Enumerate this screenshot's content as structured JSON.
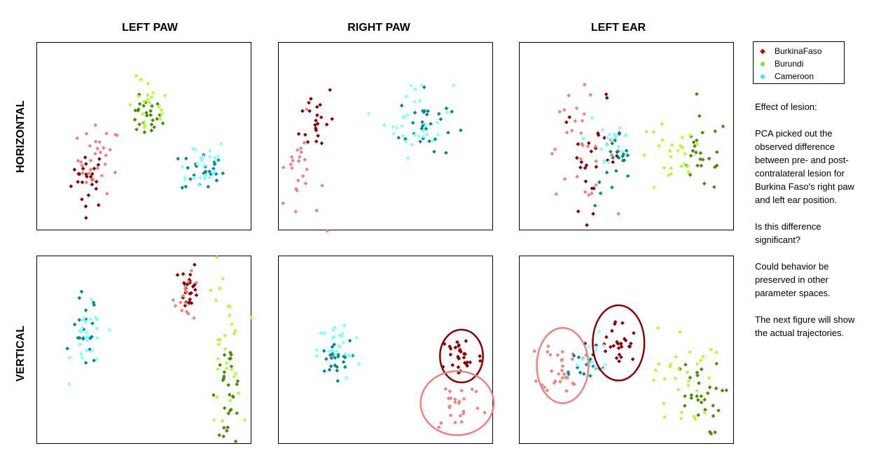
{
  "columns": [
    "LEFT PAW",
    "RIGHT PAW",
    "LEFT EAR"
  ],
  "rows": [
    "HORIZONTAL",
    "VERTICAL"
  ],
  "legend": [
    {
      "name": "BurkinaFaso",
      "color": "#c00000"
    },
    {
      "name": "Burundi",
      "color": "#7fe020"
    },
    {
      "name": "Cameroon",
      "color": "#30e8e8"
    }
  ],
  "notes": [
    "Effect of lesion:",
    "PCA picked out the observed difference between pre- and post-contralateral lesion for Burkina Faso's right paw and left ear position.",
    "Is this difference significant?",
    "Could behavior be preserved in other parameter spaces.",
    "The next figure will show the actual trajectories."
  ],
  "chart_data": {
    "type": "scatter",
    "axis_labels_shown": false,
    "grid": false,
    "legend_position": "top-right",
    "series_colors": {
      "burkina_pre": "#8b0000",
      "burkina_post": "#f08080",
      "burundi_pre": "#4a8a00",
      "burundi_post": "#adff2f",
      "cameroon_pre": "#008b8b",
      "cameroon_post": "#7fffff"
    },
    "panels": [
      {
        "row": "HORIZONTAL",
        "col": "LEFT PAW",
        "xlim": [
          0,
          100
        ],
        "ylim": [
          0,
          100
        ],
        "clusters": [
          {
            "series": "burkina_pre",
            "cx": 24,
            "cy": 28,
            "sx": 4,
            "sy": 8,
            "n": 25
          },
          {
            "series": "burkina_post",
            "cx": 29,
            "cy": 38,
            "sx": 5,
            "sy": 9,
            "n": 30
          },
          {
            "series": "burundi_pre",
            "cx": 50,
            "cy": 60,
            "sx": 4,
            "sy": 5,
            "n": 25
          },
          {
            "series": "burundi_post",
            "cx": 52,
            "cy": 65,
            "sx": 5,
            "sy": 8,
            "n": 20
          },
          {
            "series": "cameroon_pre",
            "cx": 77,
            "cy": 32,
            "sx": 5,
            "sy": 6,
            "n": 25
          },
          {
            "series": "cameroon_post",
            "cx": 75,
            "cy": 36,
            "sx": 7,
            "sy": 7,
            "n": 25
          }
        ]
      },
      {
        "row": "HORIZONTAL",
        "col": "RIGHT PAW",
        "xlim": [
          0,
          100
        ],
        "ylim": [
          0,
          100
        ],
        "clusters": [
          {
            "series": "burkina_pre",
            "cx": 18,
            "cy": 60,
            "sx": 4,
            "sy": 10,
            "n": 22
          },
          {
            "series": "burkina_post",
            "cx": 9,
            "cy": 30,
            "sx": 5,
            "sy": 15,
            "n": 28
          },
          {
            "series": "cameroon_pre",
            "cx": 68,
            "cy": 56,
            "sx": 6,
            "sy": 9,
            "n": 30
          },
          {
            "series": "cameroon_post",
            "cx": 65,
            "cy": 60,
            "sx": 8,
            "sy": 10,
            "n": 30
          }
        ]
      },
      {
        "row": "HORIZONTAL",
        "col": "LEFT EAR",
        "xlim": [
          0,
          100
        ],
        "ylim": [
          0,
          100
        ],
        "clusters": [
          {
            "series": "burkina_pre",
            "cx": 34,
            "cy": 40,
            "sx": 7,
            "sy": 14,
            "n": 30
          },
          {
            "series": "burkina_post",
            "cx": 28,
            "cy": 45,
            "sx": 8,
            "sy": 14,
            "n": 30
          },
          {
            "series": "cameroon_pre",
            "cx": 45,
            "cy": 32,
            "sx": 5,
            "sy": 10,
            "n": 20
          },
          {
            "series": "cameroon_post",
            "cx": 42,
            "cy": 50,
            "sx": 6,
            "sy": 12,
            "n": 20
          },
          {
            "series": "burundi_pre",
            "cx": 85,
            "cy": 40,
            "sx": 6,
            "sy": 10,
            "n": 25
          },
          {
            "series": "burundi_post",
            "cx": 70,
            "cy": 38,
            "sx": 8,
            "sy": 10,
            "n": 25
          }
        ]
      },
      {
        "row": "VERTICAL",
        "col": "LEFT PAW",
        "xlim": [
          0,
          100
        ],
        "ylim": [
          0,
          100
        ],
        "clusters": [
          {
            "series": "cameroon_pre",
            "cx": 22,
            "cy": 60,
            "sx": 3,
            "sy": 10,
            "n": 20
          },
          {
            "series": "cameroon_post",
            "cx": 24,
            "cy": 55,
            "sx": 4,
            "sy": 9,
            "n": 25
          },
          {
            "series": "burkina_pre",
            "cx": 71,
            "cy": 84,
            "sx": 2,
            "sy": 6,
            "n": 25
          },
          {
            "series": "burkina_post",
            "cx": 70,
            "cy": 78,
            "sx": 3,
            "sy": 6,
            "n": 15
          },
          {
            "series": "burundi_pre",
            "cx": 89,
            "cy": 25,
            "sx": 3,
            "sy": 15,
            "n": 35
          },
          {
            "series": "burundi_post",
            "cx": 87,
            "cy": 50,
            "sx": 4,
            "sy": 22,
            "n": 30
          }
        ]
      },
      {
        "row": "VERTICAL",
        "col": "RIGHT PAW",
        "xlim": [
          0,
          100
        ],
        "ylim": [
          0,
          100
        ],
        "clusters": [
          {
            "series": "cameroon_pre",
            "cx": 25,
            "cy": 45,
            "sx": 4,
            "sy": 5,
            "n": 25
          },
          {
            "series": "cameroon_post",
            "cx": 28,
            "cy": 50,
            "sx": 5,
            "sy": 8,
            "n": 25
          },
          {
            "series": "burkina_pre",
            "cx": 85,
            "cy": 47,
            "sx": 5,
            "sy": 6,
            "n": 30
          },
          {
            "series": "burkina_post",
            "cx": 83,
            "cy": 22,
            "sx": 6,
            "sy": 8,
            "n": 25
          }
        ],
        "ellipses": [
          {
            "series": "burkina_pre",
            "cx": 85,
            "cy": 47,
            "rx": 10,
            "ry": 14
          },
          {
            "series": "burkina_post",
            "cx": 83,
            "cy": 22,
            "rx": 17,
            "ry": 17
          }
        ]
      },
      {
        "row": "VERTICAL",
        "col": "LEFT EAR",
        "xlim": [
          0,
          100
        ],
        "ylim": [
          0,
          100
        ],
        "clusters": [
          {
            "series": "burkina_pre",
            "cx": 45,
            "cy": 52,
            "sx": 5,
            "sy": 7,
            "n": 30
          },
          {
            "series": "burkina_post",
            "cx": 20,
            "cy": 42,
            "sx": 5,
            "sy": 7,
            "n": 30
          },
          {
            "series": "cameroon_pre",
            "cx": 28,
            "cy": 42,
            "sx": 5,
            "sy": 4,
            "n": 15
          },
          {
            "series": "cameroon_post",
            "cx": 33,
            "cy": 46,
            "sx": 6,
            "sy": 6,
            "n": 15
          },
          {
            "series": "burundi_pre",
            "cx": 82,
            "cy": 25,
            "sx": 6,
            "sy": 10,
            "n": 30
          },
          {
            "series": "burundi_post",
            "cx": 76,
            "cy": 35,
            "sx": 7,
            "sy": 14,
            "n": 30
          }
        ],
        "ellipses": [
          {
            "series": "burkina_post",
            "cx": 20,
            "cy": 42,
            "rx": 12,
            "ry": 20
          },
          {
            "series": "burkina_pre",
            "cx": 46,
            "cy": 54,
            "rx": 12,
            "ry": 20
          }
        ]
      }
    ]
  }
}
